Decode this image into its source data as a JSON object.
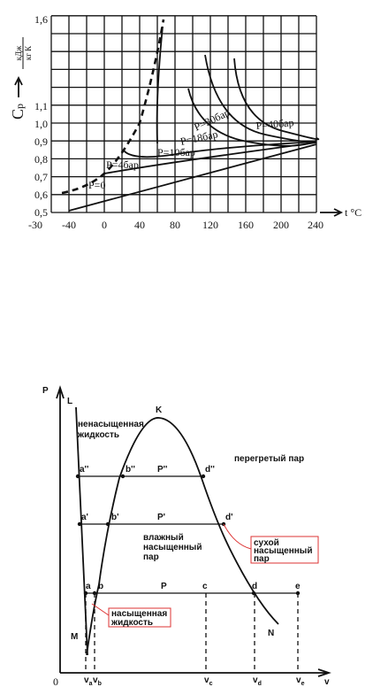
{
  "top_chart": {
    "y_axis_label": "C",
    "y_axis_sub": "p",
    "y_unit_num": "кДж",
    "y_unit_den": "кг К",
    "x_axis_label": "t °C",
    "x_tick_labels": [
      "-30",
      "-40",
      "0",
      "40",
      "80",
      "120",
      "160",
      "200",
      "240"
    ],
    "y_tick_labels": [
      "1,6",
      "1,1",
      "1,0",
      "0,9",
      "0,8",
      "0,7",
      "0,6",
      "0,5"
    ],
    "curve_labels": [
      "P=0",
      "P=4бар",
      "P=10бар",
      "P=18бар",
      "P=30бар",
      "P=40бар"
    ]
  },
  "bottom_diagram": {
    "axis_p": "P",
    "axis_v": "v",
    "origin": "0",
    "line_l": "L",
    "critical": "K",
    "line_m": "M",
    "line_n": "N",
    "region_liquid": [
      "ненасыщенная",
      "жидкость"
    ],
    "region_superheated": "перегретый пар",
    "region_wet": [
      "влажный",
      "насыщенный",
      "пар"
    ],
    "dry_box": [
      "сухой",
      "насыщенный",
      "пар"
    ],
    "sat_liquid_box": [
      "насыщенная",
      "жидкость"
    ],
    "row1": [
      "a''",
      "b''",
      "P''",
      "d''"
    ],
    "row2": [
      "a'",
      "b'",
      "P'",
      "d'"
    ],
    "row3": [
      "a",
      "b",
      "P",
      "c",
      "d",
      "e"
    ],
    "volumes": [
      {
        "main": "v",
        "sub": "a"
      },
      {
        "main": "v",
        "sub": "b"
      },
      {
        "main": "v",
        "sub": "c"
      },
      {
        "main": "v",
        "sub": "d"
      },
      {
        "main": "v",
        "sub": "e"
      }
    ]
  }
}
